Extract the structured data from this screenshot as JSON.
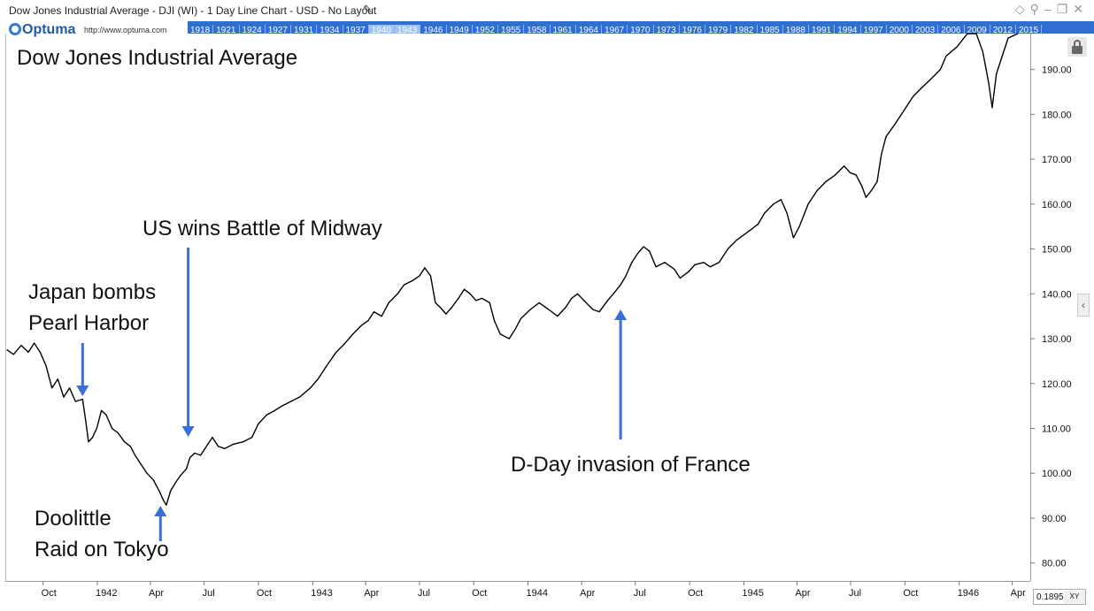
{
  "window": {
    "title": "Dow Jones Industrial Average - DJI (WI) - 1 Day Line Chart - USD - No Layout",
    "pencil_icon": "pencil-icon",
    "controls": [
      "diamond-icon",
      "pin-icon",
      "minimize-icon",
      "restore-icon",
      "close-icon"
    ]
  },
  "brand": {
    "name": "Optuma",
    "url": "http://www.optuma.com"
  },
  "year_strip": {
    "years": [
      "1918",
      "1921",
      "1924",
      "1927",
      "1931",
      "1934",
      "1937",
      "1940",
      "1943",
      "1946",
      "1949",
      "1952",
      "1955",
      "1958",
      "1961",
      "1964",
      "1967",
      "1970",
      "1973",
      "1976",
      "1979",
      "1982",
      "1985",
      "1988",
      "1991",
      "1994",
      "1997",
      "2000",
      "2003",
      "2006",
      "2009",
      "2012",
      "2015"
    ],
    "highlighted": [
      "1940",
      "1943"
    ]
  },
  "scale_box": {
    "value": "0.1895",
    "xy_label": "XY"
  },
  "colors": {
    "line": "#000000",
    "arrow": "#3a6fd8",
    "strip": "#2f6fd0"
  },
  "chart_data": {
    "type": "line",
    "title": "Dow Jones Industrial Average",
    "ylim": [
      76,
      198
    ],
    "yticks": [
      80,
      90,
      100,
      110,
      120,
      130,
      140,
      150,
      160,
      170,
      180,
      190
    ],
    "ytick_labels": [
      "80.00",
      "90.00",
      "100.00",
      "110.00",
      "120.00",
      "130.00",
      "140.00",
      "150.00",
      "160.00",
      "170.00",
      "180.00",
      "190.00"
    ],
    "xlim": [
      "1941-08-01",
      "1946-04-30"
    ],
    "xticks": [
      {
        "date": "1941-10-01",
        "label": "Oct"
      },
      {
        "date": "1942-01-01",
        "label": "1942"
      },
      {
        "date": "1942-04-01",
        "label": "Apr"
      },
      {
        "date": "1942-07-01",
        "label": "Jul"
      },
      {
        "date": "1942-10-01",
        "label": "Oct"
      },
      {
        "date": "1943-01-01",
        "label": "1943"
      },
      {
        "date": "1943-04-01",
        "label": "Apr"
      },
      {
        "date": "1943-07-01",
        "label": "Jul"
      },
      {
        "date": "1943-10-01",
        "label": "Oct"
      },
      {
        "date": "1944-01-01",
        "label": "1944"
      },
      {
        "date": "1944-04-01",
        "label": "Apr"
      },
      {
        "date": "1944-07-01",
        "label": "Jul"
      },
      {
        "date": "1944-10-01",
        "label": "Oct"
      },
      {
        "date": "1945-01-01",
        "label": "1945"
      },
      {
        "date": "1945-04-01",
        "label": "Apr"
      },
      {
        "date": "1945-07-01",
        "label": "Jul"
      },
      {
        "date": "1945-10-01",
        "label": "Oct"
      },
      {
        "date": "1946-01-01",
        "label": "1946"
      },
      {
        "date": "1946-04-01",
        "label": "Apr"
      }
    ],
    "series": [
      {
        "points": [
          [
            "1941-08-01",
            127.5
          ],
          [
            "1941-08-12",
            126.5
          ],
          [
            "1941-08-25",
            128.5
          ],
          [
            "1941-09-06",
            127
          ],
          [
            "1941-09-16",
            129
          ],
          [
            "1941-09-26",
            127
          ],
          [
            "1941-10-06",
            124
          ],
          [
            "1941-10-16",
            119
          ],
          [
            "1941-10-26",
            121
          ],
          [
            "1941-11-05",
            117
          ],
          [
            "1941-11-15",
            119
          ],
          [
            "1941-11-25",
            116
          ],
          [
            "1941-12-07",
            116.5
          ],
          [
            "1941-12-12",
            112
          ],
          [
            "1941-12-17",
            107
          ],
          [
            "1941-12-24",
            108
          ],
          [
            "1941-12-31",
            110
          ],
          [
            "1942-01-08",
            114
          ],
          [
            "1942-01-16",
            113
          ],
          [
            "1942-01-26",
            110
          ],
          [
            "1942-02-05",
            109
          ],
          [
            "1942-02-16",
            107
          ],
          [
            "1942-02-26",
            106
          ],
          [
            "1942-03-06",
            104
          ],
          [
            "1942-03-16",
            102
          ],
          [
            "1942-03-26",
            100
          ],
          [
            "1942-04-06",
            98.5
          ],
          [
            "1942-04-16",
            96
          ],
          [
            "1942-04-23",
            94
          ],
          [
            "1942-04-28",
            92.9
          ],
          [
            "1942-05-05",
            96
          ],
          [
            "1942-05-14",
            98
          ],
          [
            "1942-05-22",
            99.5
          ],
          [
            "1942-06-01",
            101
          ],
          [
            "1942-06-07",
            103.5
          ],
          [
            "1942-06-15",
            104.5
          ],
          [
            "1942-06-25",
            104
          ],
          [
            "1942-07-05",
            106
          ],
          [
            "1942-07-15",
            108
          ],
          [
            "1942-07-25",
            106
          ],
          [
            "1942-08-05",
            105.5
          ],
          [
            "1942-08-20",
            106.5
          ],
          [
            "1942-09-05",
            107
          ],
          [
            "1942-09-20",
            108
          ],
          [
            "1942-10-01",
            111
          ],
          [
            "1942-10-15",
            113
          ],
          [
            "1942-10-29",
            114
          ],
          [
            "1942-11-10",
            115
          ],
          [
            "1942-11-25",
            116
          ],
          [
            "1942-12-10",
            117
          ],
          [
            "1942-12-28",
            119
          ],
          [
            "1943-01-10",
            121
          ],
          [
            "1943-01-25",
            124
          ],
          [
            "1943-02-10",
            127
          ],
          [
            "1943-02-25",
            129
          ],
          [
            "1943-03-10",
            131
          ],
          [
            "1943-03-25",
            133
          ],
          [
            "1943-04-05",
            134
          ],
          [
            "1943-04-15",
            136
          ],
          [
            "1943-04-28",
            135
          ],
          [
            "1943-05-10",
            138
          ],
          [
            "1943-05-25",
            140
          ],
          [
            "1943-06-05",
            142
          ],
          [
            "1943-06-20",
            143
          ],
          [
            "1943-07-01",
            144
          ],
          [
            "1943-07-10",
            145.8
          ],
          [
            "1943-07-20",
            144
          ],
          [
            "1943-07-28",
            138
          ],
          [
            "1943-08-05",
            137
          ],
          [
            "1943-08-15",
            135.5
          ],
          [
            "1943-08-25",
            137
          ],
          [
            "1943-09-05",
            139
          ],
          [
            "1943-09-15",
            141
          ],
          [
            "1943-09-25",
            140
          ],
          [
            "1943-10-05",
            138.5
          ],
          [
            "1943-10-15",
            139
          ],
          [
            "1943-10-28",
            138
          ],
          [
            "1943-11-05",
            134
          ],
          [
            "1943-11-15",
            131
          ],
          [
            "1943-11-30",
            130
          ],
          [
            "1943-12-10",
            132
          ],
          [
            "1943-12-20",
            134.5
          ],
          [
            "1944-01-05",
            136.5
          ],
          [
            "1944-01-20",
            138
          ],
          [
            "1944-02-05",
            136.5
          ],
          [
            "1944-02-20",
            135
          ],
          [
            "1944-03-05",
            137
          ],
          [
            "1944-03-15",
            139
          ],
          [
            "1944-03-25",
            140
          ],
          [
            "1944-04-05",
            138.5
          ],
          [
            "1944-04-20",
            136.5
          ],
          [
            "1944-05-01",
            136
          ],
          [
            "1944-05-15",
            138.5
          ],
          [
            "1944-05-28",
            140.5
          ],
          [
            "1944-06-06",
            142
          ],
          [
            "1944-06-15",
            144
          ],
          [
            "1944-06-25",
            147
          ],
          [
            "1944-07-05",
            149
          ],
          [
            "1944-07-15",
            150.5
          ],
          [
            "1944-07-25",
            149.5
          ],
          [
            "1944-08-05",
            146
          ],
          [
            "1944-08-20",
            147
          ],
          [
            "1944-09-05",
            145.5
          ],
          [
            "1944-09-15",
            143.5
          ],
          [
            "1944-09-30",
            145
          ],
          [
            "1944-10-10",
            146.5
          ],
          [
            "1944-10-25",
            147
          ],
          [
            "1944-11-05",
            146
          ],
          [
            "1944-11-20",
            147
          ],
          [
            "1944-12-05",
            150
          ],
          [
            "1944-12-20",
            152
          ],
          [
            "1945-01-10",
            154
          ],
          [
            "1945-01-25",
            155.5
          ],
          [
            "1945-02-05",
            158
          ],
          [
            "1945-02-20",
            160
          ],
          [
            "1945-03-05",
            161
          ],
          [
            "1945-03-15",
            158
          ],
          [
            "1945-03-26",
            152.5
          ],
          [
            "1945-04-05",
            155
          ],
          [
            "1945-04-20",
            160
          ],
          [
            "1945-05-05",
            163
          ],
          [
            "1945-05-20",
            165
          ],
          [
            "1945-06-05",
            166.5
          ],
          [
            "1945-06-20",
            168.5
          ],
          [
            "1945-06-30",
            167
          ],
          [
            "1945-07-10",
            166.5
          ],
          [
            "1945-07-20",
            164
          ],
          [
            "1945-07-27",
            161.5
          ],
          [
            "1945-08-05",
            163
          ],
          [
            "1945-08-15",
            165
          ],
          [
            "1945-08-22",
            171
          ],
          [
            "1945-08-30",
            175
          ],
          [
            "1945-09-15",
            178
          ],
          [
            "1945-09-30",
            181
          ],
          [
            "1945-10-15",
            184
          ],
          [
            "1945-10-30",
            186
          ],
          [
            "1945-11-15",
            188
          ],
          [
            "1945-11-30",
            190
          ],
          [
            "1945-12-10",
            193
          ],
          [
            "1945-12-28",
            195
          ],
          [
            "1946-01-15",
            199
          ],
          [
            "1946-01-30",
            199
          ],
          [
            "1946-02-10",
            194
          ],
          [
            "1946-02-20",
            187
          ],
          [
            "1946-02-26",
            181.5
          ],
          [
            "1946-03-05",
            189
          ],
          [
            "1946-03-15",
            193
          ],
          [
            "1946-03-25",
            197
          ],
          [
            "1946-04-10",
            199
          ]
        ]
      }
    ],
    "annotations": [
      {
        "lines": [
          "Japan bombs",
          "Pearl Harbor"
        ],
        "date": "1941-12-07",
        "value": 116.5,
        "position": "above"
      },
      {
        "lines": [
          "US wins Battle of Midway"
        ],
        "date": "1942-06-04",
        "value": 103.5,
        "position": "above"
      },
      {
        "lines": [
          "Doolittle",
          "Raid on Tokyo"
        ],
        "date": "1942-04-18",
        "value": 92.9,
        "position": "below"
      },
      {
        "lines": [
          "D-Day invasion of France"
        ],
        "date": "1944-06-06",
        "value": 142,
        "position": "below"
      }
    ]
  }
}
